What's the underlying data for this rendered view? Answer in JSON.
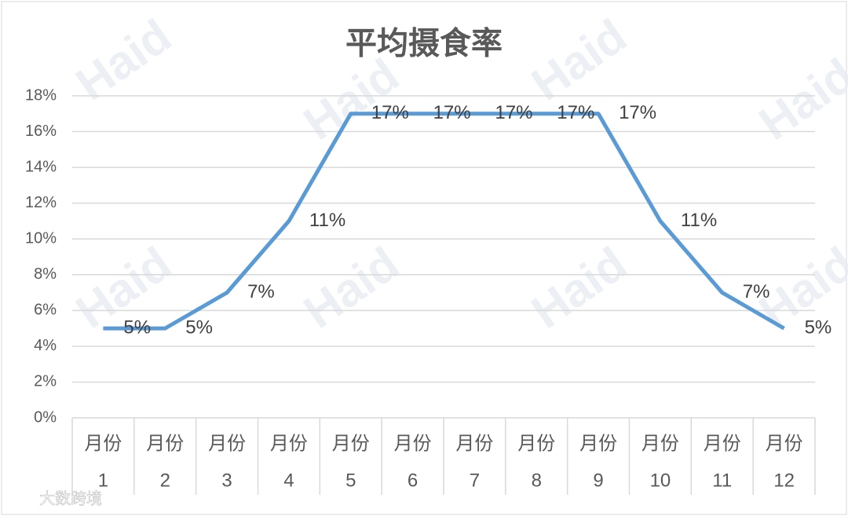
{
  "chart_data": {
    "type": "line",
    "title": "平均摄食率",
    "categories": [
      [
        "月份",
        "1"
      ],
      [
        "月份",
        "2"
      ],
      [
        "月份",
        "3"
      ],
      [
        "月份",
        "4"
      ],
      [
        "月份",
        "5"
      ],
      [
        "月份",
        "6"
      ],
      [
        "月份",
        "7"
      ],
      [
        "月份",
        "8"
      ],
      [
        "月份",
        "9"
      ],
      [
        "月份",
        "10"
      ],
      [
        "月份",
        "11"
      ],
      [
        "月份",
        "12"
      ]
    ],
    "series": [
      {
        "name": "平均摄食率",
        "color": "#5b9bd5",
        "values": [
          5,
          5,
          7,
          11,
          17,
          17,
          17,
          17,
          17,
          11,
          7,
          5
        ],
        "value_labels": [
          "5%",
          "5%",
          "7%",
          "11%",
          "17%",
          "17%",
          "17%",
          "17%",
          "17%",
          "11%",
          "7%",
          "5%"
        ]
      }
    ],
    "ylim": [
      0,
      18
    ],
    "yticks": [
      {
        "value": 0,
        "label": "0%"
      },
      {
        "value": 2,
        "label": "2%"
      },
      {
        "value": 4,
        "label": "4%"
      },
      {
        "value": 6,
        "label": "6%"
      },
      {
        "value": 8,
        "label": "8%"
      },
      {
        "value": 10,
        "label": "10%"
      },
      {
        "value": 12,
        "label": "12%"
      },
      {
        "value": 14,
        "label": "14%"
      },
      {
        "value": 16,
        "label": "16%"
      },
      {
        "value": 18,
        "label": "18%"
      }
    ],
    "grid": true,
    "watermarks": [
      "Haid",
      "大数跨境"
    ]
  }
}
